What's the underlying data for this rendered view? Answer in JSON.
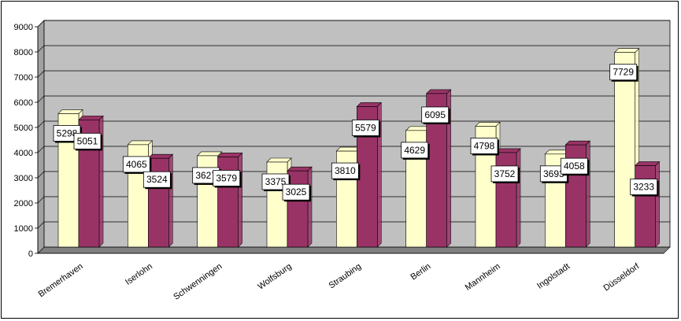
{
  "chart_data": {
    "type": "bar",
    "categories": [
      "Bremerhaven",
      "Iserlohn",
      "Schwenningen",
      "Wolfsburg",
      "Straubing",
      "Berlin",
      "Mannheim",
      "Ingolstadt",
      "Düsseldorf"
    ],
    "series": [
      {
        "values": [
          5298,
          4065,
          3627,
          3375,
          3810,
          4629,
          4798,
          3693,
          7729
        ]
      },
      {
        "values": [
          5051,
          3524,
          3579,
          3025,
          5579,
          6095,
          3752,
          4058,
          3233
        ]
      }
    ],
    "ylim": [
      0,
      9000
    ],
    "yticks": [
      "0",
      "1000",
      "2000",
      "3000",
      "4000",
      "5000",
      "6000",
      "7000",
      "8000",
      "9000"
    ],
    "grid": true,
    "legend": "none",
    "colors": {
      "series1": "#ffffcc",
      "series2": "#993366",
      "plot_bg": "#c0c0c0",
      "gridline": "#000000"
    }
  }
}
